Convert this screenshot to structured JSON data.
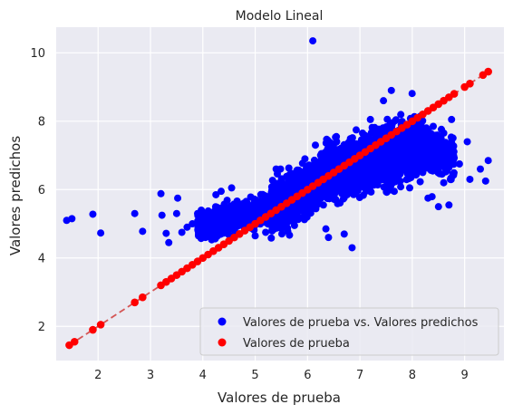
{
  "chart_data": {
    "type": "scatter",
    "title": "Modelo Lineal",
    "xlabel": "Valores de prueba",
    "ylabel": "Valores predichos",
    "xlim": [
      1.2,
      9.75
    ],
    "ylim": [
      1.0,
      10.75
    ],
    "xticks": [
      2,
      3,
      4,
      5,
      6,
      7,
      8,
      9
    ],
    "yticks": [
      2,
      4,
      6,
      8,
      10
    ],
    "grid": true,
    "legend_position": "lower-right",
    "series": [
      {
        "name": "Valores de prueba vs. Valores predichos",
        "color": "#0000ff",
        "kind": "scatter",
        "points": [
          [
            1.4,
            5.1
          ],
          [
            1.5,
            5.15
          ],
          [
            1.9,
            5.28
          ],
          [
            2.05,
            4.73
          ],
          [
            2.7,
            5.3
          ],
          [
            2.85,
            4.78
          ],
          [
            3.2,
            5.88
          ],
          [
            3.22,
            5.25
          ],
          [
            3.3,
            4.72
          ],
          [
            3.35,
            4.45
          ],
          [
            3.5,
            5.3
          ],
          [
            3.52,
            5.75
          ],
          [
            3.6,
            4.75
          ],
          [
            3.7,
            4.9
          ],
          [
            3.8,
            5.0
          ],
          [
            3.9,
            5.3
          ],
          [
            4.05,
            4.6
          ],
          [
            4.1,
            5.35
          ],
          [
            4.25,
            5.85
          ],
          [
            4.35,
            5.95
          ],
          [
            4.55,
            6.05
          ],
          [
            4.6,
            4.6
          ],
          [
            5.0,
            4.65
          ],
          [
            5.2,
            4.75
          ],
          [
            5.4,
            6.6
          ],
          [
            6.1,
            10.35
          ],
          [
            6.35,
            4.85
          ],
          [
            6.4,
            4.6
          ],
          [
            6.7,
            4.7
          ],
          [
            6.85,
            4.3
          ],
          [
            7.6,
            8.9
          ],
          [
            7.2,
            8.05
          ],
          [
            7.45,
            8.6
          ],
          [
            8.0,
            7.3
          ],
          [
            8.1,
            6.75
          ],
          [
            8.3,
            5.75
          ],
          [
            8.5,
            5.5
          ],
          [
            8.6,
            6.2
          ],
          [
            8.7,
            5.55
          ],
          [
            8.75,
            8.05
          ],
          [
            8.9,
            6.75
          ],
          [
            9.05,
            7.4
          ],
          [
            9.1,
            6.3
          ],
          [
            9.3,
            6.6
          ],
          [
            9.4,
            6.25
          ],
          [
            9.45,
            6.85
          ],
          [
            8.65,
            6.9
          ],
          [
            8.55,
            7.5
          ],
          [
            8.4,
            7.85
          ],
          [
            7.85,
            7.1
          ],
          [
            7.3,
            6.4
          ],
          [
            6.9,
            6.1
          ],
          [
            6.4,
            6.2
          ],
          [
            6.25,
            5.9
          ],
          [
            5.9,
            5.6
          ],
          [
            5.45,
            5.3
          ],
          [
            5.1,
            5.0
          ],
          [
            4.75,
            5.05
          ],
          [
            4.4,
            5.15
          ],
          [
            5.95,
            6.9
          ],
          [
            6.15,
            7.3
          ],
          [
            6.55,
            7.55
          ],
          [
            6.8,
            7.2
          ],
          [
            7.05,
            7.65
          ],
          [
            7.5,
            7.75
          ],
          [
            7.7,
            6.3
          ],
          [
            7.95,
            6.05
          ],
          [
            8.2,
            6.5
          ],
          [
            5.75,
            4.95
          ],
          [
            5.55,
            4.9
          ],
          [
            5.3,
            5.7
          ],
          [
            4.85,
            5.6
          ]
        ],
        "clouds": [
          {
            "x_from": 3.9,
            "x_to": 5.3,
            "y_at_start": 4.9,
            "y_at_end": 5.4,
            "spread": 0.35,
            "count": 900
          },
          {
            "x_from": 5.3,
            "x_to": 6.3,
            "y_at_start": 5.35,
            "y_at_end": 6.3,
            "spread": 0.6,
            "count": 1400
          },
          {
            "x_from": 6.3,
            "x_to": 8.2,
            "y_at_start": 6.4,
            "y_at_end": 7.3,
            "spread": 0.75,
            "count": 1700
          },
          {
            "x_from": 8.2,
            "x_to": 8.8,
            "y_at_start": 7.2,
            "y_at_end": 6.9,
            "spread": 0.55,
            "count": 250
          }
        ]
      },
      {
        "name": "Valores de prueba",
        "color": "#ff0000",
        "kind": "scatter-line",
        "line_style": "dashed",
        "line_color": "#d45555",
        "x_points": [
          1.45,
          1.55,
          1.9,
          2.05,
          2.7,
          2.85,
          3.2,
          3.3,
          3.4,
          3.5,
          3.6,
          3.7,
          3.8,
          3.9,
          4.0,
          4.1,
          4.2,
          4.3,
          4.4,
          4.5,
          4.6,
          4.7,
          4.8,
          4.9,
          5.0,
          5.1,
          5.2,
          5.3,
          5.4,
          5.5,
          5.6,
          5.7,
          5.8,
          5.9,
          6.0,
          6.1,
          6.2,
          6.3,
          6.4,
          6.5,
          6.6,
          6.7,
          6.8,
          6.9,
          7.0,
          7.1,
          7.2,
          7.3,
          7.4,
          7.5,
          7.6,
          7.7,
          7.8,
          7.9,
          8.0,
          8.1,
          8.2,
          8.3,
          8.4,
          8.5,
          8.6,
          8.7,
          8.8,
          9.0,
          9.1,
          9.35,
          9.45
        ]
      }
    ]
  }
}
